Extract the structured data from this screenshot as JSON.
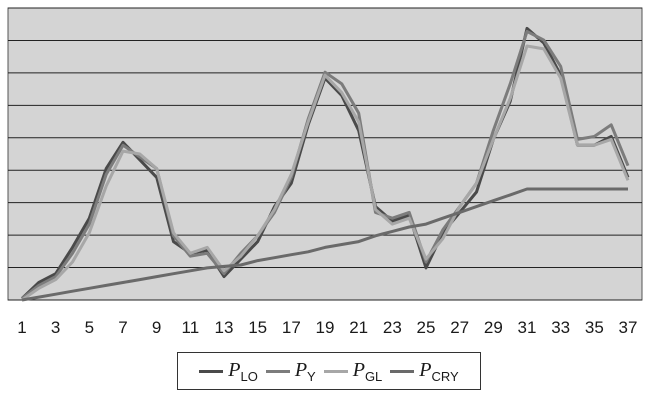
{
  "chart_data": {
    "type": "line",
    "title": "",
    "xlabel": "",
    "ylabel": "",
    "x": [
      1,
      2,
      3,
      4,
      5,
      6,
      7,
      8,
      9,
      10,
      11,
      12,
      13,
      14,
      15,
      16,
      17,
      18,
      19,
      20,
      21,
      22,
      23,
      24,
      25,
      26,
      27,
      28,
      29,
      30,
      31,
      32,
      33,
      34,
      35,
      36,
      37
    ],
    "x_tick_labels": [
      "1",
      "3",
      "5",
      "7",
      "9",
      "11",
      "13",
      "15",
      "17",
      "19",
      "21",
      "23",
      "25",
      "27",
      "29",
      "31",
      "33",
      "35",
      "37"
    ],
    "ylim": [
      0,
      10
    ],
    "y_gridlines": 9,
    "grid": true,
    "y_tick_labels_shown": false,
    "legend_position": "bottom",
    "series": [
      {
        "name": "P_LO",
        "label_main": "P",
        "label_sub": "LO",
        "color": "#4a4a4a",
        "values": [
          0.05,
          0.6,
          0.9,
          1.8,
          2.8,
          4.5,
          5.4,
          4.8,
          4.2,
          2.0,
          1.6,
          1.7,
          0.8,
          1.4,
          2.0,
          3.2,
          4.0,
          6.0,
          7.6,
          7.0,
          5.8,
          3.2,
          2.7,
          2.9,
          1.1,
          2.3,
          3.0,
          3.7,
          5.5,
          6.8,
          9.3,
          8.8,
          7.7,
          5.3,
          5.3,
          5.6,
          4.2
        ]
      },
      {
        "name": "P_Y",
        "label_main": "P",
        "label_sub": "Y",
        "color": "#7c7c7c",
        "values": [
          0.05,
          0.5,
          0.8,
          1.6,
          2.6,
          4.3,
          5.3,
          4.9,
          4.5,
          2.2,
          1.5,
          1.6,
          0.9,
          1.6,
          2.2,
          3.0,
          4.2,
          6.2,
          7.8,
          7.4,
          6.4,
          3.0,
          2.8,
          3.0,
          1.3,
          2.4,
          3.2,
          4.0,
          5.8,
          7.4,
          9.2,
          8.9,
          8.0,
          5.5,
          5.6,
          6.0,
          4.6
        ]
      },
      {
        "name": "P_GL",
        "label_main": "P",
        "label_sub": "GL",
        "color": "#a7a7a7",
        "values": [
          0.0,
          0.4,
          0.7,
          1.3,
          2.3,
          3.9,
          5.1,
          5.0,
          4.5,
          2.3,
          1.6,
          1.8,
          1.0,
          1.5,
          2.2,
          3.1,
          4.3,
          6.1,
          7.7,
          7.1,
          6.1,
          3.1,
          2.6,
          2.8,
          1.4,
          2.1,
          3.2,
          4.0,
          5.5,
          6.9,
          8.7,
          8.6,
          7.6,
          5.3,
          5.3,
          5.5,
          4.1
        ]
      },
      {
        "name": "P_CRY",
        "label_main": "P",
        "label_sub": "CRY",
        "color": "#6a6a6a",
        "values": [
          0.0,
          0.1,
          0.2,
          0.3,
          0.4,
          0.5,
          0.6,
          0.7,
          0.8,
          0.9,
          1.0,
          1.1,
          1.15,
          1.2,
          1.35,
          1.45,
          1.55,
          1.65,
          1.8,
          1.9,
          2.0,
          2.2,
          2.35,
          2.5,
          2.6,
          2.8,
          3.0,
          3.2,
          3.4,
          3.6,
          3.8,
          3.8,
          3.8,
          3.8,
          3.8,
          3.8,
          3.8
        ]
      }
    ]
  },
  "colors": {
    "plot_background": "#d4d4d4",
    "gridline": "#222222"
  }
}
